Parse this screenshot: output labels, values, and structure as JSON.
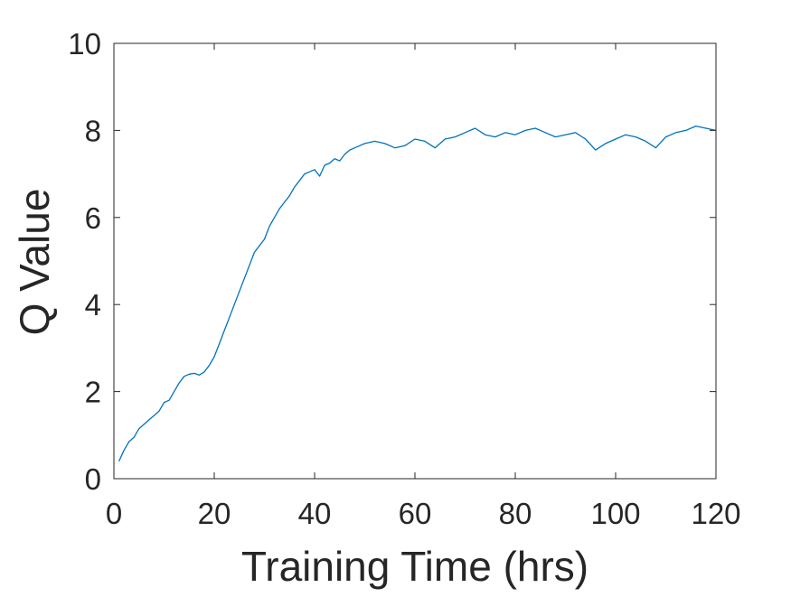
{
  "chart_data": {
    "type": "line",
    "title": "",
    "xlabel": "Training Time (hrs)",
    "ylabel": "Q Value",
    "xlim": [
      0,
      120
    ],
    "ylim": [
      0,
      10
    ],
    "xticks": [
      0,
      20,
      40,
      60,
      80,
      100,
      120
    ],
    "yticks": [
      0,
      2,
      4,
      6,
      8,
      10
    ],
    "xtick_labels": [
      "0",
      "20",
      "40",
      "60",
      "80",
      "100",
      "120"
    ],
    "ytick_labels": [
      "0",
      "2",
      "4",
      "6",
      "8",
      "10"
    ],
    "grid": false,
    "legend": "none",
    "series": [
      {
        "color": "#0072BD",
        "x": [
          1,
          2,
          3,
          4,
          5,
          6,
          7,
          8,
          9,
          10,
          11,
          12,
          13,
          14,
          15,
          16,
          17,
          18,
          19,
          20,
          21,
          22,
          23,
          24,
          25,
          26,
          27,
          28,
          29,
          30,
          31,
          32,
          33,
          34,
          35,
          36,
          37,
          38,
          39,
          40,
          41,
          42,
          43,
          44,
          45,
          46,
          47,
          48,
          49,
          50,
          52,
          54,
          56,
          58,
          60,
          62,
          64,
          66,
          68,
          70,
          72,
          74,
          76,
          78,
          80,
          82,
          84,
          86,
          88,
          90,
          92,
          94,
          96,
          98,
          100,
          102,
          104,
          106,
          108,
          110,
          112,
          114,
          116,
          118,
          120
        ],
        "y": [
          0.4,
          0.65,
          0.85,
          0.95,
          1.15,
          1.25,
          1.35,
          1.45,
          1.55,
          1.75,
          1.8,
          2.0,
          2.2,
          2.35,
          2.4,
          2.42,
          2.38,
          2.45,
          2.6,
          2.8,
          3.1,
          3.4,
          3.7,
          4.0,
          4.3,
          4.6,
          4.9,
          5.2,
          5.35,
          5.5,
          5.8,
          6.0,
          6.2,
          6.35,
          6.5,
          6.7,
          6.85,
          7.0,
          7.05,
          7.1,
          6.95,
          7.2,
          7.25,
          7.35,
          7.3,
          7.45,
          7.55,
          7.6,
          7.65,
          7.7,
          7.75,
          7.7,
          7.6,
          7.65,
          7.8,
          7.75,
          7.6,
          7.8,
          7.85,
          7.95,
          8.05,
          7.9,
          7.85,
          7.95,
          7.9,
          8.0,
          8.05,
          7.95,
          7.85,
          7.9,
          7.95,
          7.8,
          7.55,
          7.7,
          7.8,
          7.9,
          7.85,
          7.75,
          7.6,
          7.85,
          7.95,
          8.0,
          8.1,
          8.05,
          8.0
        ]
      }
    ]
  }
}
